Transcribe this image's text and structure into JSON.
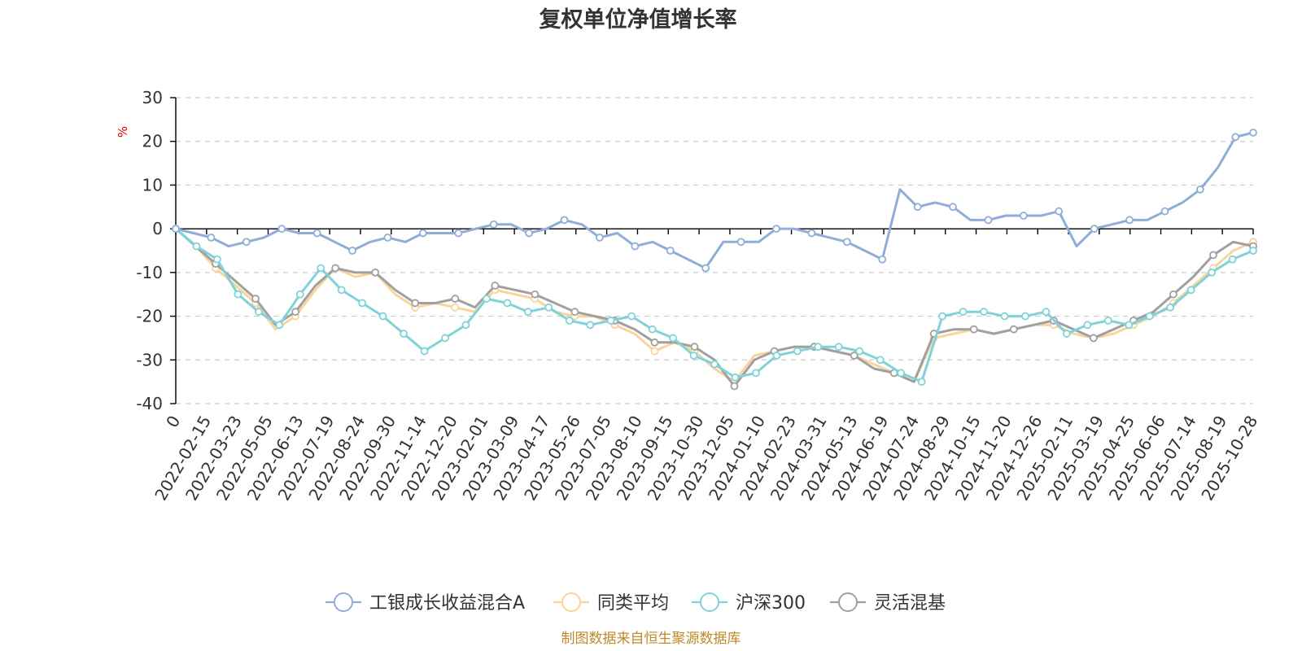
{
  "chart_data": {
    "type": "line",
    "title": "复权单位净值增长率",
    "ylabel": "%",
    "ylim": [
      -40,
      30
    ],
    "yticks": [
      30,
      20,
      10,
      0,
      -10,
      -20,
      -30,
      -40
    ],
    "x_tick_labels": [
      "0",
      "2022-02-15",
      "2022-03-23",
      "2022-05-05",
      "2022-06-13",
      "2022-07-19",
      "2022-08-24",
      "2022-09-30",
      "2022-11-14",
      "2022-12-20",
      "2023-02-01",
      "2023-03-09",
      "2023-04-17",
      "2023-05-26",
      "2023-07-05",
      "2023-08-10",
      "2023-09-15",
      "2023-10-30",
      "2023-12-05",
      "2024-01-10",
      "2024-02-23",
      "2024-03-31",
      "2024-05-13",
      "2024-06-19",
      "2024-07-24",
      "2024-08-29",
      "2024-10-15",
      "2024-11-20",
      "2024-12-26",
      "2025-02-11",
      "2025-03-19",
      "2025-04-25",
      "2025-06-06",
      "2025-07-14",
      "2025-08-19",
      "2025-10-28"
    ],
    "grid": true,
    "legend_position": "bottom",
    "source_note": "制图数据来自恒生聚源数据库",
    "series": [
      {
        "name": "工银成长收益混合A",
        "color": "#8fadd9",
        "values": [
          0,
          -1,
          -2,
          -4,
          -3,
          -2,
          0,
          -1,
          -1,
          -3,
          -5,
          -3,
          -2,
          -3,
          -1,
          -1,
          -1,
          0,
          1,
          1,
          -1,
          0,
          2,
          1,
          -2,
          -1,
          -4,
          -3,
          -5,
          -7,
          -9,
          -3,
          -3,
          -3,
          0,
          0,
          -1,
          -2,
          -3,
          -5,
          -7,
          9,
          5,
          6,
          5,
          2,
          2,
          3,
          3,
          3,
          4,
          -4,
          0,
          1,
          2,
          2,
          4,
          6,
          9,
          14,
          21,
          22
        ]
      },
      {
        "name": "同类平均",
        "color": "#f9d49b",
        "values": [
          0,
          -4,
          -9,
          -13,
          -17,
          -23,
          -20,
          -14,
          -9,
          -11,
          -10,
          -15,
          -18,
          -17,
          -18,
          -19,
          -14,
          -15,
          -16,
          -19,
          -20,
          -20,
          -22,
          -24,
          -28,
          -26,
          -28,
          -32,
          -35,
          -29,
          -28,
          -27,
          -27,
          -28,
          -29,
          -31,
          -33,
          -35,
          -25,
          -24,
          -23,
          -24,
          -23,
          -22,
          -22,
          -24,
          -25,
          -24,
          -22,
          -20,
          -17,
          -13,
          -9,
          -5,
          -3
        ]
      },
      {
        "name": "沪深300",
        "color": "#7fd3d8",
        "values": [
          0,
          -4,
          -7,
          -15,
          -19,
          -22,
          -15,
          -9,
          -14,
          -17,
          -20,
          -24,
          -28,
          -25,
          -22,
          -16,
          -17,
          -19,
          -18,
          -21,
          -22,
          -21,
          -20,
          -23,
          -25,
          -29,
          -31,
          -34,
          -33,
          -29,
          -28,
          -27,
          -27,
          -28,
          -30,
          -33,
          -35,
          -20,
          -19,
          -19,
          -20,
          -20,
          -19,
          -24,
          -22,
          -21,
          -22,
          -20,
          -18,
          -14,
          -10,
          -7,
          -5
        ]
      },
      {
        "name": "灵活混基",
        "color": "#a0a0a0",
        "values": [
          0,
          -4,
          -8,
          -12,
          -16,
          -22,
          -19,
          -13,
          -9,
          -10,
          -10,
          -14,
          -17,
          -17,
          -16,
          -18,
          -13,
          -14,
          -15,
          -17,
          -19,
          -20,
          -21,
          -23,
          -26,
          -26,
          -27,
          -30,
          -36,
          -30,
          -28,
          -27,
          -27,
          -28,
          -29,
          -32,
          -33,
          -35,
          -24,
          -23,
          -23,
          -24,
          -23,
          -22,
          -21,
          -23,
          -25,
          -23,
          -21,
          -19,
          -15,
          -11,
          -6,
          -3,
          -4
        ]
      }
    ]
  }
}
